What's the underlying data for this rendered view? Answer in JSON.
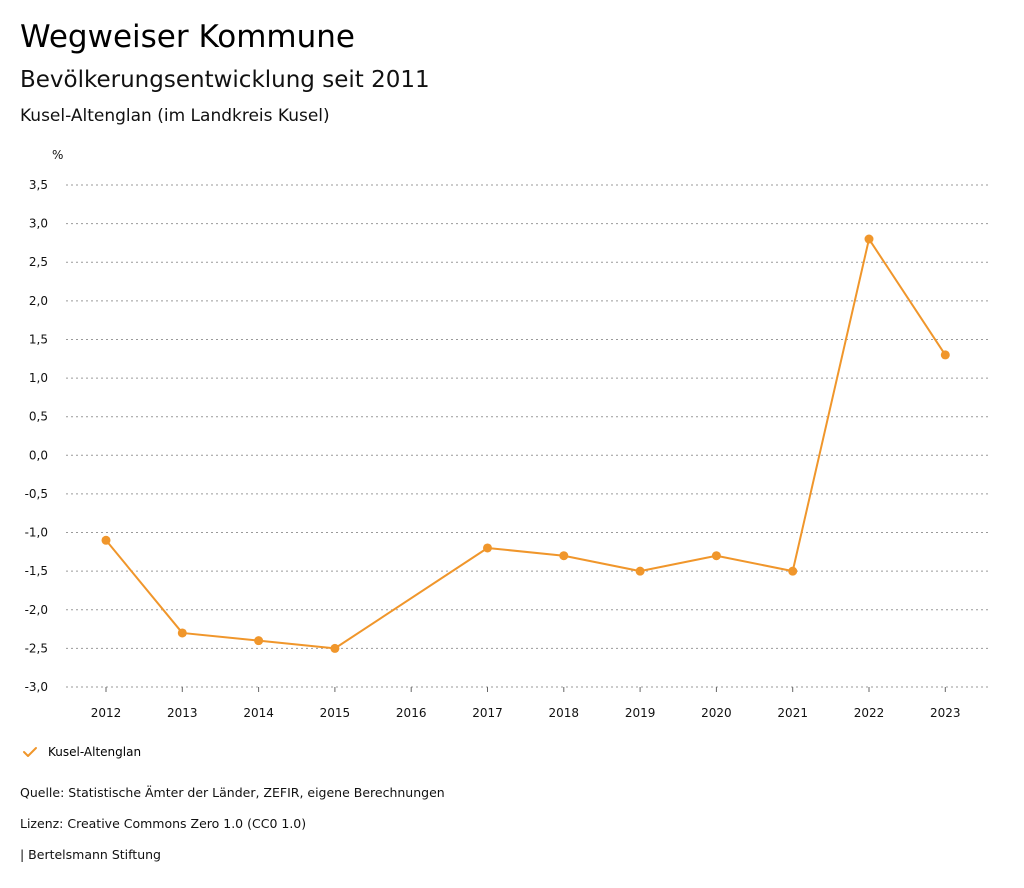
{
  "header": {
    "title": "Wegweiser Kommune",
    "subtitle": "Bevölkerungsentwicklung seit 2011",
    "region": "Kusel-Altenglan (im Landkreis Kusel)"
  },
  "chart_data": {
    "type": "line",
    "title": "Bevölkerungsentwicklung seit 2011",
    "ylabel": "%",
    "xlabel": "",
    "categories": [
      "2012",
      "2013",
      "2014",
      "2015",
      "2016",
      "2017",
      "2018",
      "2019",
      "2020",
      "2021",
      "2022",
      "2023"
    ],
    "ylim": [
      -3.0,
      3.5
    ],
    "yticks": [
      "3,5",
      "3,0",
      "2,5",
      "2,0",
      "1,5",
      "1,0",
      "0,5",
      "0,0",
      "-0,5",
      "-1,0",
      "-1,5",
      "-2,0",
      "-2,5",
      "-3,0"
    ],
    "ytick_values": [
      3.5,
      3.0,
      2.5,
      2.0,
      1.5,
      1.0,
      0.5,
      0.0,
      -0.5,
      -1.0,
      -1.5,
      -2.0,
      -2.5,
      -3.0
    ],
    "grid": true,
    "legend_position": "bottom-left",
    "series": [
      {
        "name": "Kusel-Altenglan",
        "color": "#f0962b",
        "values": [
          -1.1,
          -2.3,
          -2.4,
          -2.5,
          null,
          -1.2,
          -1.3,
          -1.5,
          -1.3,
          -1.5,
          2.8,
          1.3
        ]
      }
    ]
  },
  "legend": {
    "label": "Kusel-Altenglan",
    "icon": "check-icon"
  },
  "footer": {
    "source": "Quelle: Statistische Ämter der Länder, ZEFIR, eigene Berechnungen",
    "license": "Lizenz: Creative Commons Zero 1.0 (CC0 1.0)",
    "publisher": "| Bertelsmann Stiftung"
  }
}
